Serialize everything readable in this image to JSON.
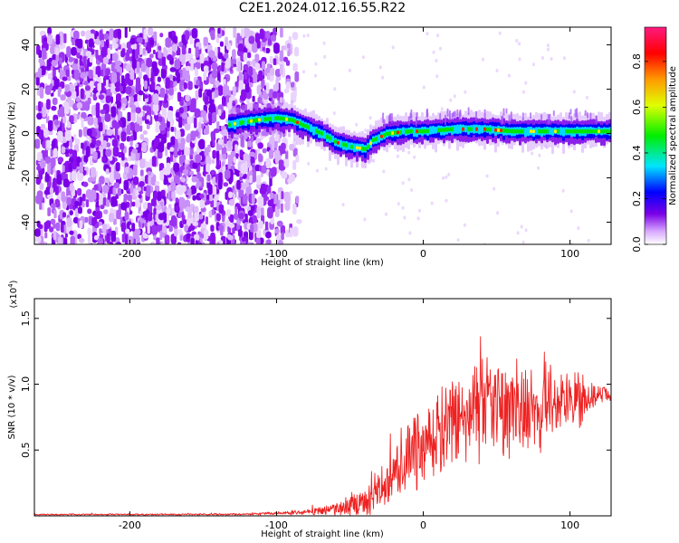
{
  "title": "C2E1.2024.012.16.55.R22",
  "chart_data": [
    {
      "type": "heatmap",
      "name": "spectrogram",
      "xlabel": "Height of straight line (km)",
      "ylabel": "Frequency (Hz)",
      "xlim": [
        -265,
        128
      ],
      "ylim": [
        -50,
        48
      ],
      "xticks": [
        -200,
        -100,
        0,
        100
      ],
      "yticks": [
        -40,
        -20,
        0,
        20,
        40
      ],
      "ridge": {
        "description": "dominant frequency ridge (Hz) vs height (km)",
        "x": [
          -133,
          -115,
          -100,
          -90,
          -80,
          -70,
          -60,
          -50,
          -40,
          -35,
          -25,
          -10,
          0,
          20,
          40,
          60,
          80,
          100,
          120,
          128
        ],
        "y": [
          4,
          6,
          7,
          6,
          3,
          0,
          -4,
          -6,
          -7,
          -3,
          0,
          1,
          1,
          2,
          2,
          1,
          1,
          1,
          1,
          1
        ]
      },
      "colorbar": {
        "label": "Normalized spectral amplitude",
        "ticks": [
          "0.0",
          "0.2",
          "0.4",
          "0.6",
          "0.8"
        ],
        "range": [
          0,
          0.95
        ]
      }
    },
    {
      "type": "line",
      "name": "snr",
      "xlabel": "Height of straight line (km)",
      "ylabel": "SNR (10 * v/v)",
      "scale_label": "(x10",
      "scale_exp": "4",
      "xlim": [
        -265,
        128
      ],
      "ylim": [
        0,
        16500
      ],
      "xticks": [
        -200,
        -100,
        0,
        100
      ],
      "yticks": [
        {
          "value": 5000,
          "label": "0.5"
        },
        {
          "value": 10000,
          "label": "1.0"
        },
        {
          "value": 15000,
          "label": "1.5"
        }
      ],
      "series_color": "#ee2222",
      "envelope": {
        "x": [
          -265,
          -120,
          -80,
          -60,
          -40,
          -30,
          -20,
          -10,
          0,
          10,
          20,
          30,
          40,
          50,
          60,
          70,
          80,
          90,
          100,
          110,
          120,
          128
        ],
        "mean": [
          100,
          120,
          300,
          500,
          1000,
          2000,
          3200,
          4300,
          5300,
          6200,
          7000,
          7600,
          8000,
          8200,
          8300,
          8400,
          8500,
          8600,
          8700,
          8900,
          9200,
          9200
        ],
        "spread": [
          50,
          60,
          200,
          400,
          1200,
          1800,
          2200,
          2600,
          2900,
          3200,
          3400,
          3600,
          3700,
          3800,
          3700,
          3600,
          3400,
          3100,
          2600,
          1800,
          600,
          500
        ]
      }
    }
  ]
}
